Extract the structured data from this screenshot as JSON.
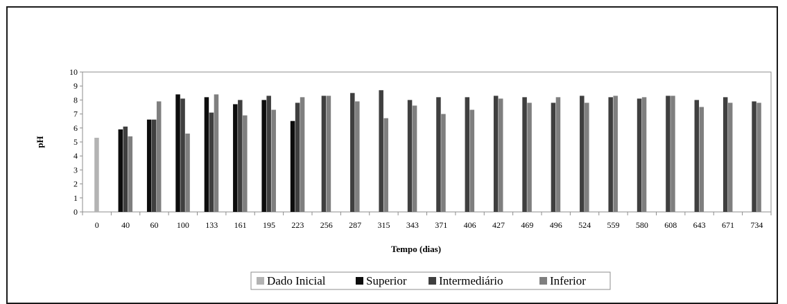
{
  "chart_data": {
    "type": "bar",
    "xlabel": "Tempo (dias)",
    "ylabel": "pH",
    "ylim": [
      0,
      10
    ],
    "yticks": [
      "0",
      "1",
      "2",
      "3",
      "4",
      "5",
      "6",
      "7",
      "8",
      "9",
      "10"
    ],
    "grid": false,
    "legend_position": "bottom",
    "categories": [
      "0",
      "40",
      "60",
      "100",
      "133",
      "161",
      "195",
      "223",
      "256",
      "287",
      "315",
      "343",
      "371",
      "406",
      "427",
      "469",
      "496",
      "524",
      "559",
      "580",
      "608",
      "643",
      "671",
      "734"
    ],
    "series": [
      {
        "name": "Dado Inicial",
        "color": "#b3b3b3",
        "values": [
          5.3,
          null,
          null,
          null,
          null,
          null,
          null,
          null,
          null,
          null,
          null,
          null,
          null,
          null,
          null,
          null,
          null,
          null,
          null,
          null,
          null,
          null,
          null,
          null
        ]
      },
      {
        "name": "Superior",
        "color": "#0d0d0d",
        "values": [
          null,
          5.9,
          6.6,
          8.4,
          8.2,
          7.7,
          8.0,
          6.5,
          null,
          null,
          null,
          null,
          null,
          null,
          null,
          null,
          null,
          null,
          null,
          null,
          null,
          null,
          null,
          null
        ]
      },
      {
        "name": "Intermediário",
        "color": "#3f3f3f",
        "values": [
          null,
          6.1,
          6.6,
          8.1,
          7.1,
          8.0,
          8.3,
          7.8,
          8.3,
          8.5,
          8.7,
          8.0,
          8.2,
          8.2,
          8.3,
          8.2,
          7.8,
          8.3,
          8.2,
          8.1,
          8.3,
          8.0,
          8.2,
          7.9
        ]
      },
      {
        "name": "Inferior",
        "color": "#7f7f7f",
        "values": [
          null,
          5.4,
          7.9,
          5.6,
          8.4,
          6.9,
          7.3,
          8.2,
          8.3,
          7.9,
          6.7,
          7.6,
          7.0,
          7.3,
          8.1,
          7.8,
          8.2,
          7.8,
          8.3,
          8.2,
          8.3,
          7.5,
          7.8,
          7.8
        ]
      }
    ]
  }
}
